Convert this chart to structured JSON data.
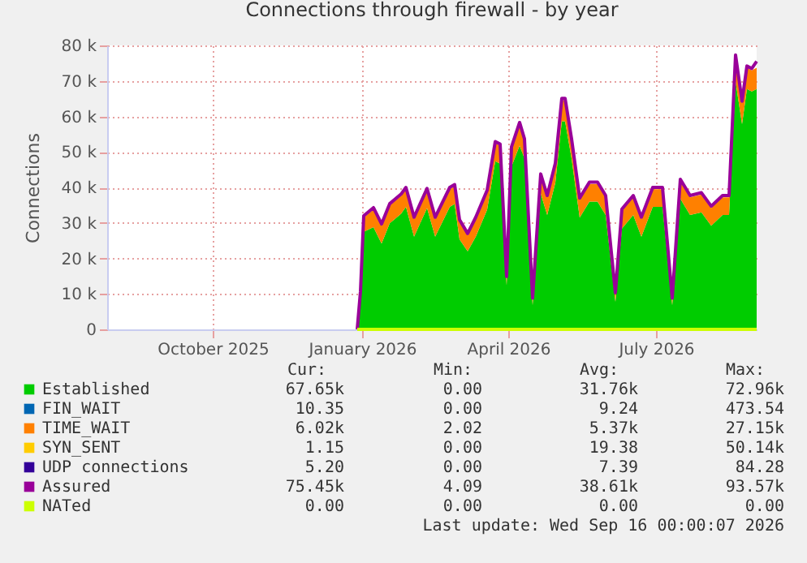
{
  "chart_data": {
    "type": "area",
    "stacked": true,
    "title": "Connections through firewall - by year",
    "ylabel": "Connections",
    "x": [
      "2025-12-29",
      "2025-12-31",
      "2026-01-02",
      "2026-01-08",
      "2026-01-13",
      "2026-01-18",
      "2026-01-25",
      "2026-01-28",
      "2026-02-02",
      "2026-02-10",
      "2026-02-15",
      "2026-02-24",
      "2026-02-27",
      "2026-03-02",
      "2026-03-07",
      "2026-03-12",
      "2026-03-19",
      "2026-03-24",
      "2026-03-27",
      "2026-03-31",
      "2026-04-03",
      "2026-04-08",
      "2026-04-11",
      "2026-04-16",
      "2026-04-21",
      "2026-04-25",
      "2026-04-30",
      "2026-05-04",
      "2026-05-06",
      "2026-05-10",
      "2026-05-15",
      "2026-05-21",
      "2026-05-26",
      "2026-05-31",
      "2026-06-06",
      "2026-06-10",
      "2026-06-17",
      "2026-06-22",
      "2026-06-29",
      "2026-07-05",
      "2026-07-11",
      "2026-07-16",
      "2026-07-22",
      "2026-07-29",
      "2026-08-04",
      "2026-08-11",
      "2026-08-15",
      "2026-08-19",
      "2026-08-23",
      "2026-08-26",
      "2026-08-29",
      "2026-09-01"
    ],
    "series": [
      {
        "name": "Established",
        "color": "#00cc00",
        "values": [
          0,
          9200,
          27500,
          28800,
          24200,
          29900,
          32600,
          34500,
          26100,
          34200,
          26100,
          34500,
          35300,
          25400,
          22000,
          26100,
          33700,
          47400,
          46700,
          12400,
          45900,
          51800,
          48200,
          6800,
          38300,
          32200,
          41300,
          58600,
          58600,
          48200,
          31500,
          36000,
          36000,
          32200,
          7800,
          28400,
          32200,
          26100,
          34500,
          34500,
          6800,
          36800,
          32200,
          33000,
          29200,
          32200,
          32200,
          69800,
          57800,
          67700,
          67000,
          67700
        ]
      },
      {
        "name": "FIN_WAIT",
        "color": "#0066b3",
        "values": [
          null,
          null,
          null,
          null,
          null,
          null,
          null,
          null,
          null,
          null,
          null,
          null,
          null,
          null,
          null,
          null,
          null,
          null,
          null,
          null,
          null,
          null,
          null,
          null,
          null,
          null,
          null,
          null,
          null,
          null,
          null,
          null,
          null,
          null,
          null,
          null,
          null,
          null,
          null,
          null,
          null,
          null,
          null,
          null,
          null,
          null,
          null,
          null,
          null,
          null,
          null,
          null
        ]
      },
      {
        "name": "TIME_WAIT",
        "color": "#ff8000",
        "values": [
          0,
          1000,
          4000,
          5000,
          5000,
          5000,
          5000,
          5000,
          5000,
          5000,
          5000,
          5000,
          5000,
          5000,
          4500,
          5000,
          5000,
          5000,
          5000,
          2000,
          5000,
          6000,
          5000,
          1500,
          5000,
          5000,
          5000,
          6000,
          6000,
          5000,
          5000,
          5000,
          5000,
          5000,
          2000,
          5000,
          5000,
          5000,
          5000,
          5000,
          1500,
          5000,
          5000,
          5000,
          5000,
          5000,
          5000,
          7000,
          6000,
          6000,
          6000,
          6000
        ]
      },
      {
        "name": "SYN_SENT",
        "color": "#ffcc00",
        "values": [
          null,
          null,
          null,
          null,
          null,
          null,
          null,
          null,
          null,
          null,
          null,
          null,
          null,
          null,
          null,
          null,
          null,
          null,
          null,
          null,
          null,
          null,
          null,
          null,
          null,
          null,
          null,
          null,
          null,
          null,
          null,
          null,
          null,
          null,
          null,
          null,
          null,
          null,
          null,
          null,
          null,
          null,
          null,
          null,
          null,
          null,
          null,
          null,
          null,
          null,
          null,
          null
        ]
      },
      {
        "name": "UDP connections",
        "color": "#330099",
        "values": [
          null,
          null,
          null,
          null,
          null,
          null,
          null,
          null,
          null,
          null,
          null,
          null,
          null,
          null,
          null,
          null,
          null,
          null,
          null,
          null,
          null,
          null,
          null,
          null,
          null,
          null,
          null,
          null,
          null,
          null,
          null,
          null,
          null,
          null,
          null,
          null,
          null,
          null,
          null,
          null,
          null,
          null,
          null,
          null,
          null,
          null,
          null,
          null,
          null,
          null,
          null,
          null
        ]
      },
      {
        "name": "Assured",
        "color": "#990099",
        "type": "line",
        "values": [
          0,
          10700,
          32000,
          34300,
          29700,
          35400,
          38100,
          40000,
          31600,
          39700,
          31600,
          40000,
          40800,
          30900,
          27000,
          31600,
          39200,
          52900,
          52200,
          14900,
          51400,
          58300,
          53700,
          8800,
          43800,
          37700,
          46800,
          65100,
          65100,
          53700,
          37000,
          41500,
          41500,
          37700,
          10300,
          33900,
          37700,
          31600,
          40000,
          40000,
          8800,
          42300,
          37700,
          38500,
          34700,
          37700,
          37700,
          77300,
          64300,
          74200,
          73500,
          75500
        ]
      },
      {
        "name": "NATed",
        "color": "#ccff00",
        "type": "line",
        "values": [
          0,
          0,
          0,
          0,
          0,
          0,
          0,
          0,
          0,
          0,
          0,
          0,
          0,
          0,
          0,
          0,
          0,
          0,
          0,
          0,
          0,
          0,
          0,
          0,
          0,
          0,
          0,
          0,
          0,
          0,
          0,
          0,
          0,
          0,
          0,
          0,
          0,
          0,
          0,
          0,
          0,
          0,
          0,
          0,
          0,
          0,
          0,
          0,
          0,
          0,
          0,
          0
        ]
      }
    ],
    "xlim": [
      "2025-07-28",
      "2026-09-01"
    ],
    "xticks": [
      {
        "value": "2025-10-01",
        "label": "October 2025"
      },
      {
        "value": "2026-01-01",
        "label": "January 2026"
      },
      {
        "value": "2026-04-01",
        "label": "April 2026"
      },
      {
        "value": "2026-07-01",
        "label": "July 2026"
      }
    ],
    "ylim": [
      0,
      80000
    ],
    "yticks": [
      {
        "value": 0,
        "label": "0"
      },
      {
        "value": 10000,
        "label": "10 k"
      },
      {
        "value": 20000,
        "label": "20 k"
      },
      {
        "value": 30000,
        "label": "30 k"
      },
      {
        "value": 40000,
        "label": "40 k"
      },
      {
        "value": 50000,
        "label": "50 k"
      },
      {
        "value": 60000,
        "label": "60 k"
      },
      {
        "value": 70000,
        "label": "70 k"
      },
      {
        "value": 80000,
        "label": "80 k"
      }
    ],
    "grid": true,
    "legend": "bottom",
    "annotations": [
      "Cur:",
      "Min:",
      "Avg:",
      "Max:",
      "67.65k",
      "0.00",
      "31.76k",
      "72.96k",
      "10.35",
      "0.00",
      "9.24",
      "473.54",
      "6.02k",
      "2.02",
      "5.37k",
      "27.15k",
      "1.15",
      "0.00",
      "19.38",
      "50.14k",
      "5.20",
      "0.00",
      "7.39",
      "84.28",
      "75.45k",
      "4.09",
      "38.61k",
      "93.57k",
      "0.00",
      "0.00",
      "0.00",
      "0.00",
      "Last update: Wed Sep 16 00:00:07 2026"
    ]
  }
}
